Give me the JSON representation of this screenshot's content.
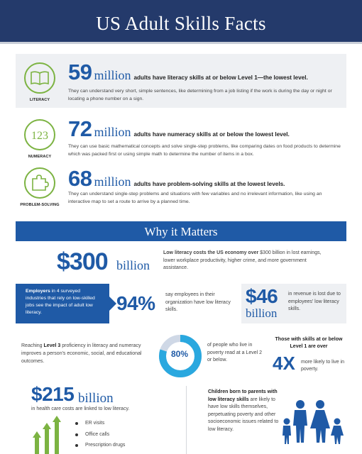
{
  "title": "US Adult Skills Facts",
  "facts": [
    {
      "icon": "book-icon",
      "label": "LITERACY",
      "number": "59",
      "unit": "million",
      "headline": "adults have literacy skills at or below Level 1—the lowest level.",
      "description": "They can understand very short, simple sentences, like determining from a job listing if the work is during the day or night or locating a phone number on a sign."
    },
    {
      "icon": "numbers-123-icon",
      "label": "NUMERACY",
      "number": "72",
      "unit": "million",
      "headline": "adults have numeracy skills at or below the lowest level.",
      "description": "They can use basic mathematical concepts and solve single-step problems, like comparing dates on food products to determine which was packed first or using simple math to determine the number of items in a box."
    },
    {
      "icon": "puzzle-piece-icon",
      "label": "PROBLEM-SOLVING",
      "number": "68",
      "unit": "million",
      "headline": "adults have problem-solving skills at the lowest levels.",
      "description": "They can understand single-step problems and situations with few variables and no irrelevant information, like using an interactive map to set a route to arrive by a planned time."
    }
  ],
  "matters": {
    "title": "Why it Matters",
    "cost": {
      "amount": "$300",
      "unit": "billion",
      "lead": "Low literacy costs the US economy over",
      "text": " $300 billion in lost earnings, lower workplace productivity, higher crime, and more government assistance."
    },
    "employers": {
      "lead": "Employers",
      "text": " in 4 surveyed industries that rely on low-skilled jobs see the impact of adult low literacy.",
      "percent": "94%",
      "percent_text": "say employees in their organization have low literacy skills.",
      "revenue_amount": "$46",
      "revenue_unit": "billion",
      "revenue_text": "in revenue is lost due to employees' low literacy skills."
    },
    "level3": {
      "pre": "Reaching ",
      "bold": "Level 3",
      "post": " proficiency in literacy and numeracy improves a person's economic, social, and educational outcomes."
    },
    "poverty": {
      "percent": "80%",
      "percent_value": 0.8,
      "text": "of people who live in poverty read at a Level 2 or below."
    },
    "level1": {
      "headline": "Those with skills at or below Level 1 are over",
      "multiplier": "4X",
      "text": "more likely to live in poverty."
    },
    "health": {
      "amount": "$215",
      "unit": "billion",
      "text": "in health care costs are linked to low literacy.",
      "items": [
        "ER visits",
        "Office calls",
        "Prescription drugs"
      ]
    },
    "children": {
      "lead": "Children born to parents with low literacy skills",
      "text": " are likely to have low skills themselves, perpetuating poverty and other socioeconomic issues related to low literacy."
    }
  },
  "colors": {
    "navy": "#243a6b",
    "blue": "#1f5aa6",
    "light_blue": "#2aa8df",
    "green": "#7cb342",
    "gray_panel": "#eef0f3"
  }
}
